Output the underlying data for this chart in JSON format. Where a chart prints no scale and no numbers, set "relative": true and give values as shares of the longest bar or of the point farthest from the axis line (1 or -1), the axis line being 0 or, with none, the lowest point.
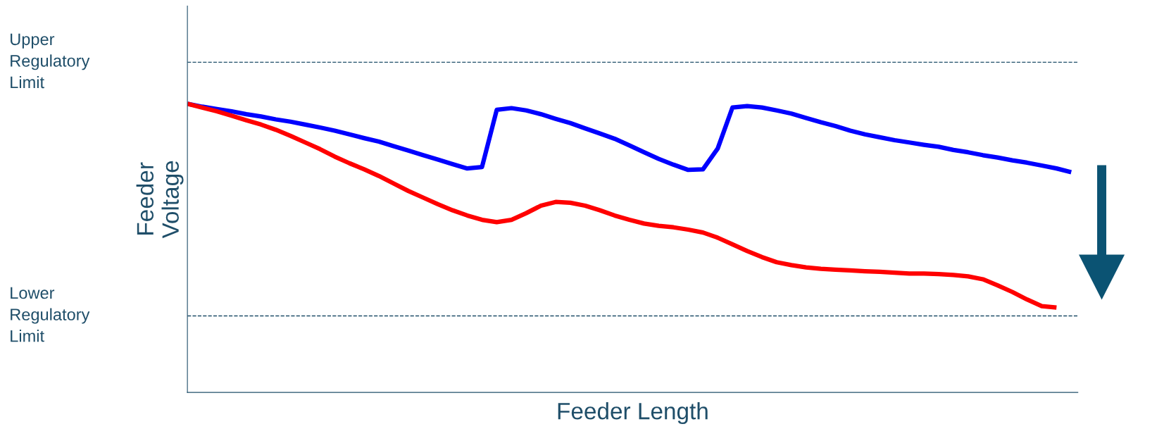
{
  "chart_data": {
    "type": "line",
    "relative": true,
    "xlabel": "Feeder Length",
    "ylabel": "Feeder\nVoltage",
    "categories": [
      null,
      null,
      null,
      null,
      null,
      null,
      null,
      null,
      null,
      null,
      null,
      null,
      null,
      null,
      null,
      null,
      null,
      null,
      null,
      null,
      null,
      null,
      null,
      null,
      null,
      null,
      null,
      null,
      null,
      null,
      null,
      null,
      null,
      null,
      null,
      null,
      null,
      null,
      null,
      null,
      null,
      null,
      null,
      null,
      null,
      null,
      null,
      null,
      null,
      null,
      null,
      null,
      null,
      null,
      null,
      null,
      null,
      null,
      null,
      null,
      null
    ],
    "series": [
      {
        "color": "#0000ff",
        "values": [
          1.0,
          0.99,
          0.982,
          0.974,
          0.964,
          0.956,
          0.946,
          0.938,
          0.928,
          0.918,
          0.907,
          0.894,
          0.881,
          0.869,
          0.853,
          0.838,
          0.822,
          0.807,
          0.791,
          0.776,
          0.781,
          0.979,
          0.985,
          0.977,
          0.964,
          0.948,
          0.933,
          0.915,
          0.897,
          0.879,
          0.856,
          0.832,
          0.809,
          0.789,
          0.771,
          0.773,
          0.845,
          0.987,
          0.992,
          0.987,
          0.977,
          0.966,
          0.951,
          0.936,
          0.923,
          0.907,
          0.894,
          0.884,
          0.874,
          0.866,
          0.858,
          0.851,
          0.84,
          0.832,
          0.822,
          0.814,
          0.804,
          0.796,
          0.786,
          0.776,
          0.763
        ]
      },
      {
        "color": "#ff0000",
        "values": [
          1.0,
          0.987,
          0.974,
          0.959,
          0.943,
          0.928,
          0.91,
          0.889,
          0.866,
          0.843,
          0.817,
          0.794,
          0.773,
          0.75,
          0.724,
          0.698,
          0.675,
          0.652,
          0.631,
          0.613,
          0.598,
          0.59,
          0.598,
          0.621,
          0.647,
          0.66,
          0.657,
          0.647,
          0.631,
          0.613,
          0.598,
          0.585,
          0.577,
          0.572,
          0.564,
          0.554,
          0.536,
          0.513,
          0.49,
          0.469,
          0.451,
          0.441,
          0.433,
          0.428,
          0.425,
          0.423,
          0.42,
          0.418,
          0.415,
          0.412,
          0.412,
          0.41,
          0.407,
          0.402,
          0.392,
          0.371,
          0.348,
          0.322,
          0.299,
          0.294,
          null
        ]
      }
    ],
    "ref_lines": [
      {
        "axis": "y",
        "value": 1.144,
        "label": "Upper Regulatory Limit",
        "color": "#1f4e69",
        "line_style": "dashed"
      },
      {
        "axis": "y",
        "value": 0.265,
        "label": "Lower Regulatory Limit",
        "color": "#1f4e69",
        "line_style": "dashed"
      }
    ],
    "marker": "none",
    "line_style": "solid"
  }
}
